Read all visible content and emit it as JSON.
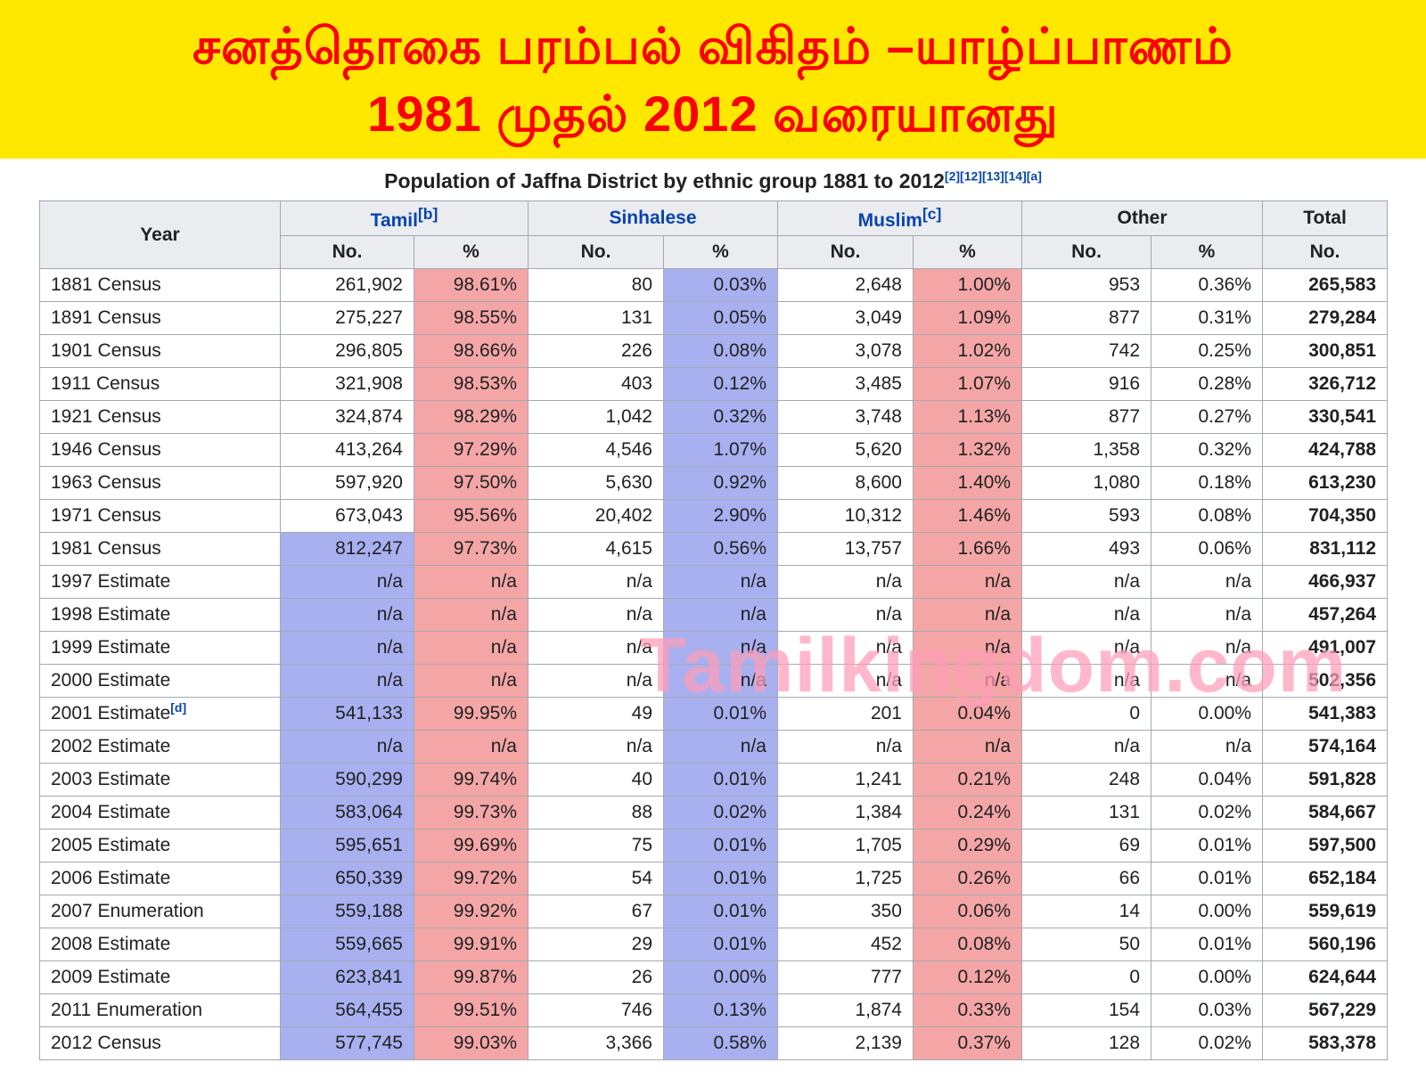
{
  "banner": {
    "line1": "சனத்தொகை பரம்பல் விகிதம் –யாழ்ப்பாணம்",
    "line2": "1981 முதல் 2012 வரையானது"
  },
  "watermark": {
    "text": "Tamilkingdom.com"
  },
  "colors": {
    "banner-bg": "#ffe800",
    "banner-text": "#fb0007",
    "link": "#0645ad",
    "blue-cell": "#a9b0f0",
    "pink-cell": "#f4a6a6",
    "header-bg": "#eaecf0",
    "border": "#a2a9b1",
    "watermark": "#ff9db8"
  },
  "table": {
    "title": "Population of Jaffna District by ethnic group 1881 to 2012",
    "title_refs": [
      "[2]",
      "[12]",
      "[13]",
      "[14]",
      "[a]"
    ],
    "headers": {
      "year": "Year",
      "total": "Total",
      "no": "No.",
      "pct": "%"
    },
    "groups": [
      {
        "label": "Tamil",
        "ref": "[b]"
      },
      {
        "label": "Sinhalese",
        "ref": ""
      },
      {
        "label": "Muslim",
        "ref": "[c]"
      },
      {
        "label": "Other",
        "ref": ""
      }
    ],
    "rows": [
      {
        "year": "1881 Census",
        "ref": "",
        "tamil_no": "261,902",
        "tamil_pct": "98.61%",
        "sinhalese_no": "80",
        "sinhalese_pct": "0.03%",
        "muslim_no": "2,648",
        "muslim_pct": "1.00%",
        "other_no": "953",
        "other_pct": "0.36%",
        "total": "265,583",
        "tamil_highlight": false
      },
      {
        "year": "1891 Census",
        "ref": "",
        "tamil_no": "275,227",
        "tamil_pct": "98.55%",
        "sinhalese_no": "131",
        "sinhalese_pct": "0.05%",
        "muslim_no": "3,049",
        "muslim_pct": "1.09%",
        "other_no": "877",
        "other_pct": "0.31%",
        "total": "279,284",
        "tamil_highlight": false
      },
      {
        "year": "1901 Census",
        "ref": "",
        "tamil_no": "296,805",
        "tamil_pct": "98.66%",
        "sinhalese_no": "226",
        "sinhalese_pct": "0.08%",
        "muslim_no": "3,078",
        "muslim_pct": "1.02%",
        "other_no": "742",
        "other_pct": "0.25%",
        "total": "300,851",
        "tamil_highlight": false
      },
      {
        "year": "1911 Census",
        "ref": "",
        "tamil_no": "321,908",
        "tamil_pct": "98.53%",
        "sinhalese_no": "403",
        "sinhalese_pct": "0.12%",
        "muslim_no": "3,485",
        "muslim_pct": "1.07%",
        "other_no": "916",
        "other_pct": "0.28%",
        "total": "326,712",
        "tamil_highlight": false
      },
      {
        "year": "1921 Census",
        "ref": "",
        "tamil_no": "324,874",
        "tamil_pct": "98.29%",
        "sinhalese_no": "1,042",
        "sinhalese_pct": "0.32%",
        "muslim_no": "3,748",
        "muslim_pct": "1.13%",
        "other_no": "877",
        "other_pct": "0.27%",
        "total": "330,541",
        "tamil_highlight": false
      },
      {
        "year": "1946 Census",
        "ref": "",
        "tamil_no": "413,264",
        "tamil_pct": "97.29%",
        "sinhalese_no": "4,546",
        "sinhalese_pct": "1.07%",
        "muslim_no": "5,620",
        "muslim_pct": "1.32%",
        "other_no": "1,358",
        "other_pct": "0.32%",
        "total": "424,788",
        "tamil_highlight": false
      },
      {
        "year": "1963 Census",
        "ref": "",
        "tamil_no": "597,920",
        "tamil_pct": "97.50%",
        "sinhalese_no": "5,630",
        "sinhalese_pct": "0.92%",
        "muslim_no": "8,600",
        "muslim_pct": "1.40%",
        "other_no": "1,080",
        "other_pct": "0.18%",
        "total": "613,230",
        "tamil_highlight": false
      },
      {
        "year": "1971 Census",
        "ref": "",
        "tamil_no": "673,043",
        "tamil_pct": "95.56%",
        "sinhalese_no": "20,402",
        "sinhalese_pct": "2.90%",
        "muslim_no": "10,312",
        "muslim_pct": "1.46%",
        "other_no": "593",
        "other_pct": "0.08%",
        "total": "704,350",
        "tamil_highlight": false
      },
      {
        "year": "1981 Census",
        "ref": "",
        "tamil_no": "812,247",
        "tamil_pct": "97.73%",
        "sinhalese_no": "4,615",
        "sinhalese_pct": "0.56%",
        "muslim_no": "13,757",
        "muslim_pct": "1.66%",
        "other_no": "493",
        "other_pct": "0.06%",
        "total": "831,112",
        "tamil_highlight": true
      },
      {
        "year": "1997 Estimate",
        "ref": "",
        "tamil_no": "n/a",
        "tamil_pct": "n/a",
        "sinhalese_no": "n/a",
        "sinhalese_pct": "n/a",
        "muslim_no": "n/a",
        "muslim_pct": "n/a",
        "other_no": "n/a",
        "other_pct": "n/a",
        "total": "466,937",
        "tamil_highlight": true
      },
      {
        "year": "1998 Estimate",
        "ref": "",
        "tamil_no": "n/a",
        "tamil_pct": "n/a",
        "sinhalese_no": "n/a",
        "sinhalese_pct": "n/a",
        "muslim_no": "n/a",
        "muslim_pct": "n/a",
        "other_no": "n/a",
        "other_pct": "n/a",
        "total": "457,264",
        "tamil_highlight": true
      },
      {
        "year": "1999 Estimate",
        "ref": "",
        "tamil_no": "n/a",
        "tamil_pct": "n/a",
        "sinhalese_no": "n/a",
        "sinhalese_pct": "n/a",
        "muslim_no": "n/a",
        "muslim_pct": "n/a",
        "other_no": "n/a",
        "other_pct": "n/a",
        "total": "491,007",
        "tamil_highlight": true
      },
      {
        "year": "2000 Estimate",
        "ref": "",
        "tamil_no": "n/a",
        "tamil_pct": "n/a",
        "sinhalese_no": "n/a",
        "sinhalese_pct": "n/a",
        "muslim_no": "n/a",
        "muslim_pct": "n/a",
        "other_no": "n/a",
        "other_pct": "n/a",
        "total": "502,356",
        "tamil_highlight": true
      },
      {
        "year": "2001 Estimate",
        "ref": "[d]",
        "tamil_no": "541,133",
        "tamil_pct": "99.95%",
        "sinhalese_no": "49",
        "sinhalese_pct": "0.01%",
        "muslim_no": "201",
        "muslim_pct": "0.04%",
        "other_no": "0",
        "other_pct": "0.00%",
        "total": "541,383",
        "tamil_highlight": true
      },
      {
        "year": "2002 Estimate",
        "ref": "",
        "tamil_no": "n/a",
        "tamil_pct": "n/a",
        "sinhalese_no": "n/a",
        "sinhalese_pct": "n/a",
        "muslim_no": "n/a",
        "muslim_pct": "n/a",
        "other_no": "n/a",
        "other_pct": "n/a",
        "total": "574,164",
        "tamil_highlight": true
      },
      {
        "year": "2003 Estimate",
        "ref": "",
        "tamil_no": "590,299",
        "tamil_pct": "99.74%",
        "sinhalese_no": "40",
        "sinhalese_pct": "0.01%",
        "muslim_no": "1,241",
        "muslim_pct": "0.21%",
        "other_no": "248",
        "other_pct": "0.04%",
        "total": "591,828",
        "tamil_highlight": true
      },
      {
        "year": "2004 Estimate",
        "ref": "",
        "tamil_no": "583,064",
        "tamil_pct": "99.73%",
        "sinhalese_no": "88",
        "sinhalese_pct": "0.02%",
        "muslim_no": "1,384",
        "muslim_pct": "0.24%",
        "other_no": "131",
        "other_pct": "0.02%",
        "total": "584,667",
        "tamil_highlight": true
      },
      {
        "year": "2005 Estimate",
        "ref": "",
        "tamil_no": "595,651",
        "tamil_pct": "99.69%",
        "sinhalese_no": "75",
        "sinhalese_pct": "0.01%",
        "muslim_no": "1,705",
        "muslim_pct": "0.29%",
        "other_no": "69",
        "other_pct": "0.01%",
        "total": "597,500",
        "tamil_highlight": true
      },
      {
        "year": "2006 Estimate",
        "ref": "",
        "tamil_no": "650,339",
        "tamil_pct": "99.72%",
        "sinhalese_no": "54",
        "sinhalese_pct": "0.01%",
        "muslim_no": "1,725",
        "muslim_pct": "0.26%",
        "other_no": "66",
        "other_pct": "0.01%",
        "total": "652,184",
        "tamil_highlight": true
      },
      {
        "year": "2007 Enumeration",
        "ref": "",
        "tamil_no": "559,188",
        "tamil_pct": "99.92%",
        "sinhalese_no": "67",
        "sinhalese_pct": "0.01%",
        "muslim_no": "350",
        "muslim_pct": "0.06%",
        "other_no": "14",
        "other_pct": "0.00%",
        "total": "559,619",
        "tamil_highlight": true
      },
      {
        "year": "2008 Estimate",
        "ref": "",
        "tamil_no": "559,665",
        "tamil_pct": "99.91%",
        "sinhalese_no": "29",
        "sinhalese_pct": "0.01%",
        "muslim_no": "452",
        "muslim_pct": "0.08%",
        "other_no": "50",
        "other_pct": "0.01%",
        "total": "560,196",
        "tamil_highlight": true
      },
      {
        "year": "2009 Estimate",
        "ref": "",
        "tamil_no": "623,841",
        "tamil_pct": "99.87%",
        "sinhalese_no": "26",
        "sinhalese_pct": "0.00%",
        "muslim_no": "777",
        "muslim_pct": "0.12%",
        "other_no": "0",
        "other_pct": "0.00%",
        "total": "624,644",
        "tamil_highlight": true
      },
      {
        "year": "2011 Enumeration",
        "ref": "",
        "tamil_no": "564,455",
        "tamil_pct": "99.51%",
        "sinhalese_no": "746",
        "sinhalese_pct": "0.13%",
        "muslim_no": "1,874",
        "muslim_pct": "0.33%",
        "other_no": "154",
        "other_pct": "0.03%",
        "total": "567,229",
        "tamil_highlight": true
      },
      {
        "year": "2012 Census",
        "ref": "",
        "tamil_no": "577,745",
        "tamil_pct": "99.03%",
        "sinhalese_no": "3,366",
        "sinhalese_pct": "0.58%",
        "muslim_no": "2,139",
        "muslim_pct": "0.37%",
        "other_no": "128",
        "other_pct": "0.02%",
        "total": "583,378",
        "tamil_highlight": true
      }
    ]
  }
}
